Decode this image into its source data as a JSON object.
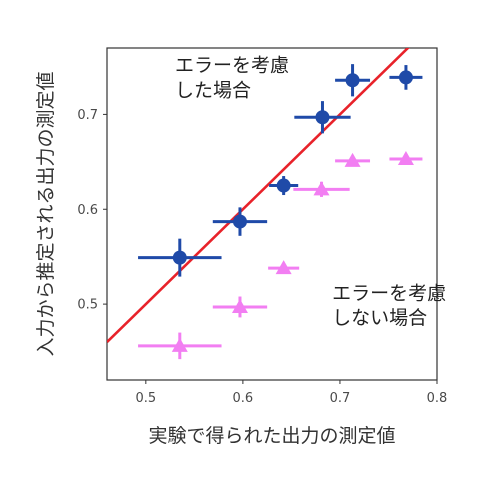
{
  "chart_data": {
    "type": "scatter",
    "xlabel": "実験で得られた出力の測定値",
    "ylabel": "入力から推定される出力の測定値",
    "xlim": [
      0.46,
      0.8
    ],
    "ylim": [
      0.42,
      0.77
    ],
    "xticks": [
      {
        "value": 0.5,
        "label": "0.5"
      },
      {
        "value": 0.6,
        "label": "0.6"
      },
      {
        "value": 0.7,
        "label": "0.7"
      },
      {
        "value": 0.8,
        "label": "0.8"
      }
    ],
    "yticks": [
      {
        "value": 0.5,
        "label": "0.5"
      },
      {
        "value": 0.6,
        "label": "0.6"
      },
      {
        "value": 0.7,
        "label": "0.7"
      }
    ],
    "grid": false,
    "reference_line": {
      "slope": 1,
      "intercept": 0,
      "color": "#e8222a"
    },
    "series": [
      {
        "color": "#1f4aa8",
        "marker": "circle",
        "points": [
          {
            "x": 0.535,
            "y": 0.549,
            "xerr": 0.043,
            "yerr": 0.02
          },
          {
            "x": 0.597,
            "y": 0.587,
            "xerr": 0.028,
            "yerr": 0.015
          },
          {
            "x": 0.642,
            "y": 0.625,
            "xerr": 0.015,
            "yerr": 0.01
          },
          {
            "x": 0.682,
            "y": 0.697,
            "xerr": 0.029,
            "yerr": 0.017
          },
          {
            "x": 0.713,
            "y": 0.736,
            "xerr": 0.018,
            "yerr": 0.017
          },
          {
            "x": 0.768,
            "y": 0.739,
            "xerr": 0.017,
            "yerr": 0.013
          }
        ]
      },
      {
        "color": "#f27ef2",
        "marker": "triangle",
        "points": [
          {
            "x": 0.535,
            "y": 0.456,
            "xerr": 0.043,
            "yerr": 0.014
          },
          {
            "x": 0.597,
            "y": 0.497,
            "xerr": 0.028,
            "yerr": 0.011
          },
          {
            "x": 0.642,
            "y": 0.538,
            "xerr": 0.016,
            "yerr": 0.005
          },
          {
            "x": 0.681,
            "y": 0.621,
            "xerr": 0.029,
            "yerr": 0.008
          },
          {
            "x": 0.713,
            "y": 0.651,
            "xerr": 0.018,
            "yerr": 0.005
          },
          {
            "x": 0.768,
            "y": 0.653,
            "xerr": 0.017,
            "yerr": 0.005
          }
        ]
      }
    ],
    "annotations": [
      {
        "lines": [
          "エラーを考慮",
          "した場合"
        ],
        "x": 0.53,
        "y": 0.745
      },
      {
        "lines": [
          "エラーを考慮",
          "しない場合"
        ],
        "x": 0.692,
        "y": 0.505
      }
    ]
  }
}
